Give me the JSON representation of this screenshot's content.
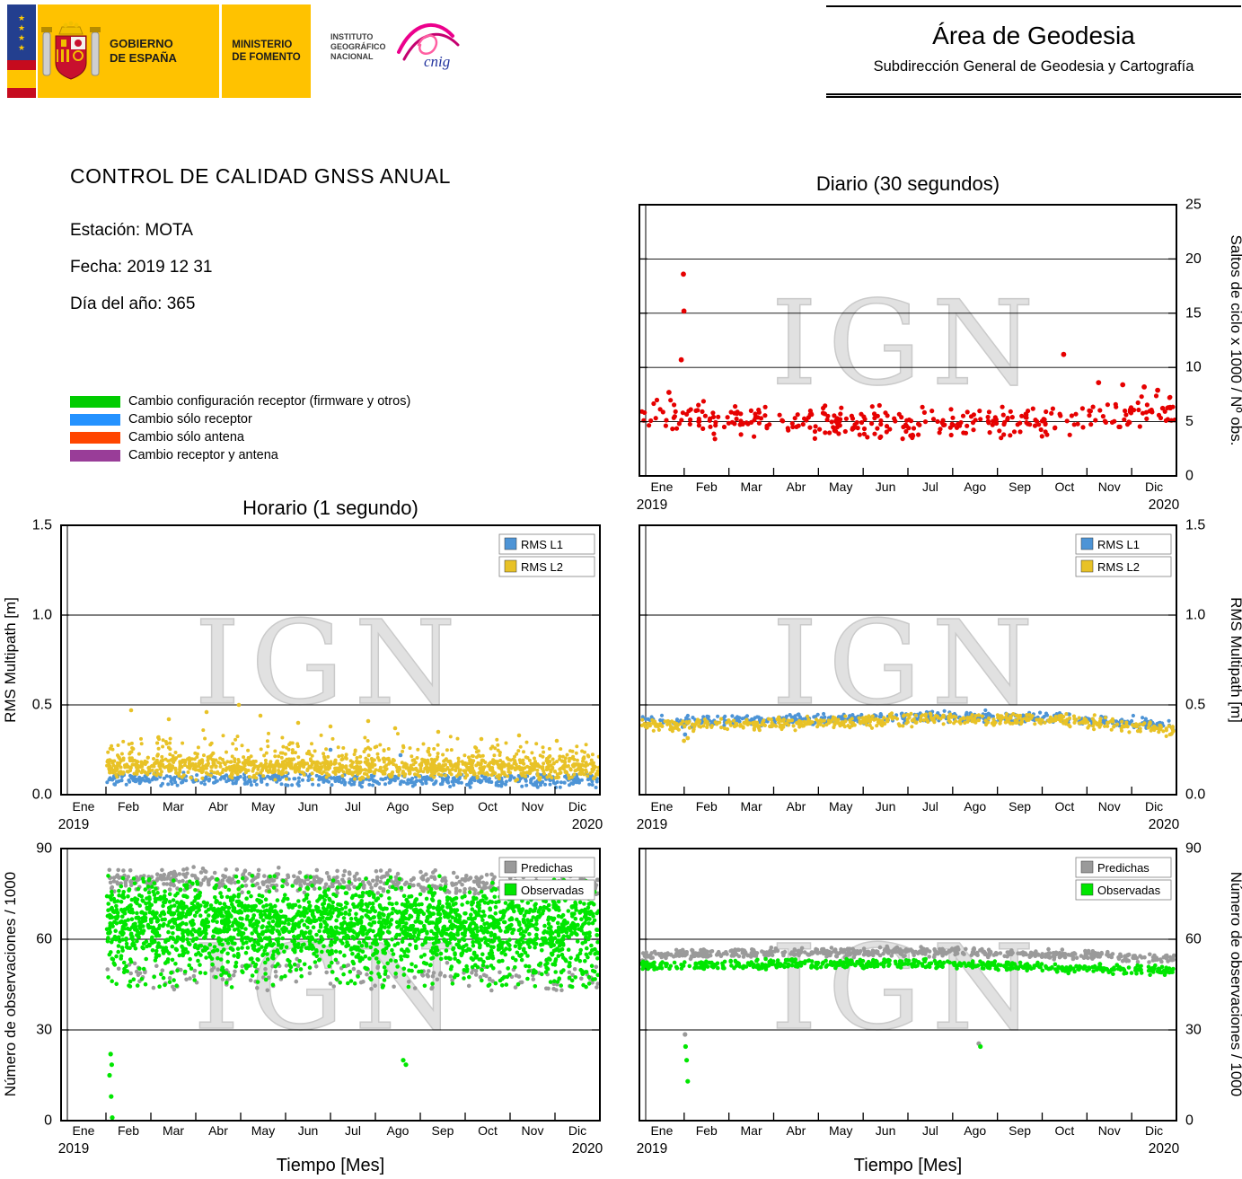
{
  "header": {
    "gobierno": "GOBIERNO\nDE ESPAÑA",
    "ministerio": "MINISTERIO\nDE FOMENTO",
    "instituto": "INSTITUTO\nGEOGRÁFICO\nNACIONAL",
    "cnig": "cnig",
    "area_title": "Área de Geodesia",
    "area_subtitle": "Subdirección General de Geodesia y Cartografía"
  },
  "report": {
    "title": "CONTROL DE CALIDAD GNSS ANUAL",
    "station": "Estación: MOTA",
    "date": "Fecha: 2019 12 31",
    "doy": "Día del año: 365"
  },
  "legend": {
    "items": [
      {
        "label": "Cambio configuración receptor (firmware y otros)",
        "color": "#00cc00"
      },
      {
        "label": "Cambio sólo receptor",
        "color": "#2492ff"
      },
      {
        "label": "Cambio sólo antena",
        "color": "#ff4500"
      },
      {
        "label": "Cambio receptor y antena",
        "color": "#993d98"
      }
    ]
  },
  "months": [
    "Ene",
    "Feb",
    "Mar",
    "Abr",
    "May",
    "Jun",
    "Jul",
    "Ago",
    "Sep",
    "Oct",
    "Nov",
    "Dic"
  ],
  "year_start": "2019",
  "year_end": "2020",
  "watermark": "IGN",
  "chart_data": [
    {
      "id": "diario",
      "type": "scatter",
      "title": "Diario (30 segundos)",
      "ylabel": "Saltos de ciclo x 1000 / Nº obs.",
      "ylabel_side": "right",
      "xlabel": "",
      "ylim": [
        0,
        25
      ],
      "yticks": [
        0,
        5,
        10,
        15,
        20,
        25
      ],
      "ytick_labels": [
        "0",
        "5",
        "10",
        "15",
        "20",
        "25"
      ],
      "grid_y": [
        5,
        10,
        15,
        20
      ],
      "x_range": [
        "2019",
        "2020"
      ],
      "series": [
        {
          "name": "saltos-de-ciclo",
          "color": "#e60000",
          "marker_r": 2.6,
          "summary": "daily cycle-slip ratio ~4.5-7 all year, slightly higher Nov-Dec",
          "clusters": [
            {
              "x0": 0.003,
              "x1": 0.997,
              "n": 345,
              "profile": [
                [
                  0,
                  5.6
                ],
                [
                  0.12,
                  5.3
                ],
                [
                  0.3,
                  5.1
                ],
                [
                  0.5,
                  4.8
                ],
                [
                  0.68,
                  4.8
                ],
                [
                  0.8,
                  5.2
                ],
                [
                  0.9,
                  6.0
                ],
                [
                  1,
                  6.2
                ]
              ],
              "spread": 0.85,
              "ymin": 3.4,
              "ymax": 8.8
            }
          ],
          "points": [
            [
              0.055,
              7.7
            ],
            [
              0.082,
              18.6
            ],
            [
              0.083,
              15.2
            ],
            [
              0.078,
              10.7
            ],
            [
              0.79,
              11.2
            ],
            [
              0.855,
              8.6
            ],
            [
              0.9,
              8.4
            ],
            [
              0.94,
              8.2
            ],
            [
              0.965,
              7.9
            ]
          ]
        }
      ]
    },
    {
      "id": "horario",
      "type": "scatter",
      "title": "Horario (1 segundo)",
      "ylabel": "RMS Multipath [m]",
      "ylabel_side": "left",
      "xlabel": "",
      "ylim": [
        0,
        1.5
      ],
      "yticks": [
        0,
        0.5,
        1,
        1.5
      ],
      "ytick_labels": [
        "0.0",
        "0.5",
        "1.0",
        "1.5"
      ],
      "grid_y": [
        0.5,
        1.0
      ],
      "x_range": [
        "2019",
        "2020"
      ],
      "legend": [
        {
          "label": "RMS L1",
          "color": "#4d94d6"
        },
        {
          "label": "RMS L2",
          "color": "#e8c227"
        }
      ],
      "series": [
        {
          "name": "rms-l1",
          "color": "#4d94d6",
          "marker_r": 2.0,
          "summary": "hourly L1 multipath ~0.08 m, data start Feb",
          "clusters": [
            {
              "x0": 0.085,
              "x1": 0.998,
              "n": 550,
              "profile": [
                [
                  0,
                  0.09
                ],
                [
                  1,
                  0.078
                ]
              ],
              "spread": 0.022,
              "ymin": 0.04,
              "ymax": 0.3
            }
          ],
          "points": [
            [
              0.5,
              0.25
            ],
            [
              0.63,
              0.22
            ]
          ]
        },
        {
          "name": "rms-l2",
          "color": "#e8c227",
          "marker_r": 2.0,
          "summary": "hourly L2 multipath ~0.15 m with scatter to 0.5 m, data start Feb",
          "clusters": [
            {
              "x0": 0.085,
              "x1": 0.998,
              "n": 1050,
              "profile": [
                [
                  0,
                  0.16
                ],
                [
                  1,
                  0.145
                ]
              ],
              "spread": 0.035,
              "ymin": 0.07,
              "ymax": 0.3
            },
            {
              "x0": 0.085,
              "x1": 0.998,
              "n": 260,
              "profile": [
                [
                  0,
                  0.27
                ],
                [
                  0.5,
                  0.24
                ],
                [
                  1,
                  0.2
                ]
              ],
              "spread": 0.055,
              "ymin": 0.15,
              "ymax": 0.5
            }
          ],
          "points": [
            [
              0.13,
              0.47
            ],
            [
              0.2,
              0.42
            ],
            [
              0.27,
              0.46
            ],
            [
              0.33,
              0.5
            ],
            [
              0.37,
              0.44
            ],
            [
              0.44,
              0.4
            ],
            [
              0.5,
              0.38
            ],
            [
              0.57,
              0.41
            ],
            [
              0.62,
              0.37
            ],
            [
              0.7,
              0.35
            ],
            [
              0.78,
              0.31
            ],
            [
              0.85,
              0.33
            ],
            [
              0.92,
              0.3
            ]
          ]
        }
      ]
    },
    {
      "id": "horario_right",
      "type": "scatter",
      "title": "",
      "ylabel": "RMS Multipath [m]",
      "ylabel_side": "right",
      "xlabel": "",
      "ylim": [
        0,
        1.5
      ],
      "yticks": [
        0,
        0.5,
        1,
        1.5
      ],
      "ytick_labels": [
        "0.0",
        "0.5",
        "1.0",
        "1.5"
      ],
      "grid_y": [
        0.5,
        1.0
      ],
      "x_range": [
        "2019",
        "2020"
      ],
      "legend": [
        {
          "label": "RMS L1",
          "color": "#4d94d6"
        },
        {
          "label": "RMS L2",
          "color": "#e8c227"
        }
      ],
      "series": [
        {
          "name": "rms-l1",
          "color": "#4d94d6",
          "marker_r": 2.1,
          "summary": "daily L1 multipath ~0.40-0.44 m all year",
          "clusters": [
            {
              "x0": 0.004,
              "x1": 0.996,
              "n": 480,
              "profile": [
                [
                  0,
                  0.405
                ],
                [
                  0.3,
                  0.415
                ],
                [
                  0.55,
                  0.435
                ],
                [
                  0.78,
                  0.43
                ],
                [
                  1,
                  0.385
                ]
              ],
              "spread": 0.018,
              "ymin": 0.3,
              "ymax": 0.48
            }
          ],
          "points": [
            [
              0.085,
              0.335
            ]
          ]
        },
        {
          "name": "rms-l2",
          "color": "#e8c227",
          "marker_r": 2.1,
          "summary": "daily L2 multipath ~0.38-0.42 m all year, dip to 0.30 in Feb",
          "clusters": [
            {
              "x0": 0.004,
              "x1": 0.996,
              "n": 540,
              "profile": [
                [
                  0,
                  0.385
                ],
                [
                  0.3,
                  0.4
                ],
                [
                  0.55,
                  0.42
                ],
                [
                  0.78,
                  0.415
                ],
                [
                  1,
                  0.36
                ]
              ],
              "spread": 0.02,
              "ymin": 0.28,
              "ymax": 0.47
            }
          ],
          "points": [
            [
              0.083,
              0.3
            ],
            [
              0.09,
              0.315
            ]
          ]
        }
      ]
    },
    {
      "id": "obs",
      "type": "scatter",
      "title": "",
      "ylabel": "Número de observaciones / 1000",
      "ylabel_side": "left",
      "xlabel": "Tiempo [Mes]",
      "ylim": [
        0,
        90
      ],
      "yticks": [
        0,
        30,
        60,
        90
      ],
      "ytick_labels": [
        "0",
        "30",
        "60",
        "90"
      ],
      "grid_y": [
        30,
        60
      ],
      "x_range": [
        "2019",
        "2020"
      ],
      "legend": [
        {
          "label": "Predichas",
          "color": "#9a9a9a"
        },
        {
          "label": "Observadas",
          "color": "#00e600"
        }
      ],
      "series": [
        {
          "name": "predichas",
          "color": "#9a9a9a",
          "marker_r": 2.3,
          "summary": "hourly predicted observations band 75-84k and 44-55k, data start Feb",
          "clusters": [
            {
              "x0": 0.085,
              "x1": 0.998,
              "n": 540,
              "profile": [
                [
                  0,
                  80
                ],
                [
                  1,
                  78
                ]
              ],
              "spread": 2.2,
              "ymin": 73,
              "ymax": 84
            },
            {
              "x0": 0.085,
              "x1": 0.998,
              "n": 170,
              "profile": [
                [
                  0,
                  49
                ],
                [
                  1,
                  47
                ]
              ],
              "spread": 3.0,
              "ymin": 43,
              "ymax": 56
            }
          ],
          "points": []
        },
        {
          "name": "observadas",
          "color": "#00e600",
          "marker_r": 2.3,
          "summary": "hourly observed observations dense band 46-81k, outliers down to 1k in Feb and ~19k in Oct",
          "clusters": [
            {
              "x0": 0.085,
              "x1": 0.998,
              "n": 1800,
              "profile": [
                [
                  0,
                  67
                ],
                [
                  1,
                  64
                ]
              ],
              "spread": 8,
              "ymin": 46,
              "ymax": 81
            },
            {
              "x0": 0.085,
              "x1": 0.998,
              "n": 700,
              "profile": [
                [
                  0,
                  60
                ],
                [
                  1,
                  58
                ]
              ],
              "spread": 11,
              "ymin": 44,
              "ymax": 80
            }
          ],
          "points": [
            [
              0.092,
              22
            ],
            [
              0.094,
              18.5
            ],
            [
              0.09,
              15
            ],
            [
              0.093,
              8
            ],
            [
              0.095,
              1
            ],
            [
              0.635,
              20
            ],
            [
              0.64,
              18.5
            ]
          ]
        }
      ]
    },
    {
      "id": "obs_right",
      "type": "scatter",
      "title": "",
      "ylabel": "Número de observaciones / 1000",
      "ylabel_side": "right",
      "xlabel": "Tiempo [Mes]",
      "ylim": [
        0,
        90
      ],
      "yticks": [
        0,
        30,
        60,
        90
      ],
      "ytick_labels": [
        "0",
        "30",
        "60",
        "90"
      ],
      "grid_y": [
        30,
        60
      ],
      "x_range": [
        "2019",
        "2020"
      ],
      "legend": [
        {
          "label": "Predichas",
          "color": "#9a9a9a"
        },
        {
          "label": "Observadas",
          "color": "#00e600"
        }
      ],
      "series": [
        {
          "name": "predichas",
          "color": "#9a9a9a",
          "marker_r": 2.3,
          "summary": "daily predicted observations ~54-56k all year, outlier 28.5k in Feb",
          "clusters": [
            {
              "x0": 0.004,
              "x1": 0.996,
              "n": 540,
              "profile": [
                [
                  0,
                  54.5
                ],
                [
                  0.1,
                  55.2
                ],
                [
                  0.5,
                  56
                ],
                [
                  0.8,
                  55
                ],
                [
                  1,
                  53.5
                ]
              ],
              "spread": 0.9,
              "ymin": 51,
              "ymax": 58
            }
          ],
          "points": [
            [
              0.085,
              28.5
            ],
            [
              0.632,
              25.5
            ]
          ]
        },
        {
          "name": "observadas",
          "color": "#00e600",
          "marker_r": 2.3,
          "summary": "daily observed observations ~50-52k all year, outliers 13-25k in Feb and ~24.5k in Oct",
          "clusters": [
            {
              "x0": 0.004,
              "x1": 0.996,
              "n": 540,
              "profile": [
                [
                  0,
                  51
                ],
                [
                  0.1,
                  51.5
                ],
                [
                  0.5,
                  52
                ],
                [
                  0.8,
                  50.5
                ],
                [
                  1,
                  49.5
                ]
              ],
              "spread": 0.9,
              "ymin": 47.5,
              "ymax": 54
            }
          ],
          "points": [
            [
              0.086,
              24.5
            ],
            [
              0.088,
              20
            ],
            [
              0.09,
              13
            ],
            [
              0.635,
              24.5
            ]
          ]
        }
      ]
    }
  ]
}
